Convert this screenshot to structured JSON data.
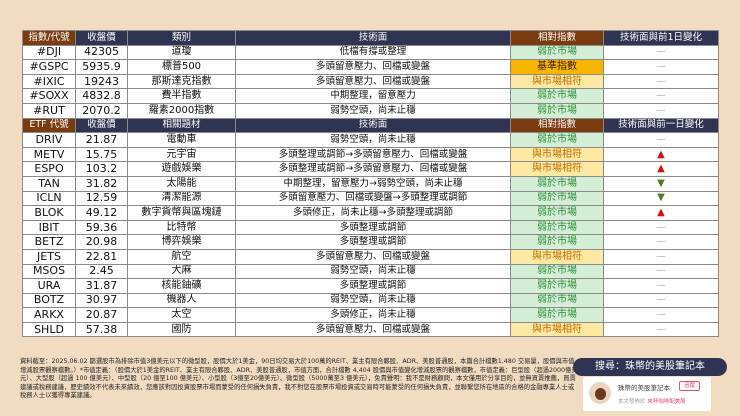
{
  "index_header": [
    "指數/代號",
    "收盤價",
    "類別",
    "技術面",
    "相對指數",
    "技術面與前1日變化"
  ],
  "indices": [
    {
      "code": "#DJI",
      "price": "42305",
      "category": "道瓊",
      "tech": "低檔有撐或整理",
      "rel": "弱於市場",
      "rel_type": "weak",
      "change": "—",
      "change_type": "flat"
    },
    {
      "code": "#GSPC",
      "price": "5935.9",
      "category": "標普500",
      "tech": "多頭留意壓力、回檔或變盤",
      "rel": "基準指數",
      "rel_type": "bench",
      "change": "—",
      "change_type": "flat"
    },
    {
      "code": "#IXIC",
      "price": "19243",
      "category": "那斯達克指數",
      "tech": "多頭留意壓力、回檔或變盤",
      "rel": "與市場相符",
      "rel_type": "match",
      "change": "—",
      "change_type": "flat"
    },
    {
      "code": "#SOXX",
      "price": "4832.8",
      "category": "費半指數",
      "tech": "中期整理，留意壓力",
      "rel": "弱於市場",
      "rel_type": "weak",
      "change": "—",
      "change_type": "flat"
    },
    {
      "code": "#RUT",
      "price": "2070.2",
      "category": "羅素2000指數",
      "tech": "弱勢空頭，尚未止穩",
      "rel": "弱於市場",
      "rel_type": "weak",
      "change": "—",
      "change_type": "flat"
    }
  ],
  "etf_header": [
    "ETF 代號",
    "收盤價",
    "相關題材",
    "技術面",
    "相對指數",
    "技術面與前一日變化"
  ],
  "etfs": [
    {
      "code": "DRIV",
      "price": "21.87",
      "category": "電動車",
      "tech": "弱勢空頭，尚未止穩",
      "rel": "弱於市場",
      "rel_type": "weak",
      "change": "—",
      "change_type": "flat"
    },
    {
      "code": "METV",
      "price": "15.75",
      "category": "元宇宙",
      "tech": "多頭整理或調節→多頭留意壓力、回檔或變盤",
      "rel": "與市場相符",
      "rel_type": "match",
      "change": "▲",
      "change_type": "up"
    },
    {
      "code": "ESPO",
      "price": "103.2",
      "category": "遊戲娛樂",
      "tech": "多頭整理或調節→多頭留意壓力、回檔或變盤",
      "rel": "與市場相符",
      "rel_type": "match",
      "change": "▲",
      "change_type": "up"
    },
    {
      "code": "TAN",
      "price": "31.82",
      "category": "太陽能",
      "tech": "中期整理，留意壓力→弱勢空頭，尚未止穩",
      "rel": "弱於市場",
      "rel_type": "weak",
      "change": "▼",
      "change_type": "down"
    },
    {
      "code": "ICLN",
      "price": "12.59",
      "category": "清潔能源",
      "tech": "多頭留意壓力、回檔或變盤→多頭整理或調節",
      "rel": "弱於市場",
      "rel_type": "weak",
      "change": "▼",
      "change_type": "down"
    },
    {
      "code": "BLOK",
      "price": "49.12",
      "category": "數字貨幣與區塊鏈",
      "tech": "多頭修正，尚未止穩→多頭整理或調節",
      "rel": "弱於市場",
      "rel_type": "weak",
      "change": "▲",
      "change_type": "up"
    },
    {
      "code": "IBIT",
      "price": "59.36",
      "category": "比特幣",
      "tech": "多頭整理或調節",
      "rel": "弱於市場",
      "rel_type": "weak",
      "change": "—",
      "change_type": "flat"
    },
    {
      "code": "BETZ",
      "price": "20.98",
      "category": "博弈娛樂",
      "tech": "多頭整理或調節",
      "rel": "弱於市場",
      "rel_type": "weak",
      "change": "—",
      "change_type": "flat"
    },
    {
      "code": "JETS",
      "price": "22.81",
      "category": "航空",
      "tech": "多頭留意壓力、回檔或變盤",
      "rel": "與市場相符",
      "rel_type": "match",
      "change": "—",
      "change_type": "flat"
    },
    {
      "code": "MSOS",
      "price": "2.45",
      "category": "大麻",
      "tech": "弱勢空頭，尚未止穩",
      "rel": "弱於市場",
      "rel_type": "weak",
      "change": "—",
      "change_type": "flat"
    },
    {
      "code": "URA",
      "price": "31.87",
      "category": "核能鈾礦",
      "tech": "多頭整理或調節",
      "rel": "弱於市場",
      "rel_type": "weak",
      "change": "—",
      "change_type": "flat"
    },
    {
      "code": "BOTZ",
      "price": "30.97",
      "category": "機器人",
      "tech": "弱勢空頭，尚未止穩",
      "rel": "弱於市場",
      "rel_type": "weak",
      "change": "—",
      "change_type": "flat"
    },
    {
      "code": "ARKX",
      "price": "20.87",
      "category": "太空",
      "tech": "多頭修正，尚未止穩",
      "rel": "弱於市場",
      "rel_type": "weak",
      "change": "—",
      "change_type": "flat"
    },
    {
      "code": "SHLD",
      "price": "57.38",
      "category": "國防",
      "tech": "多頭留意壓力、回檔或變盤",
      "rel": "與市場相符",
      "rel_type": "match",
      "change": "—",
      "change_type": "flat"
    }
  ],
  "footnote": "資料截至：2025.06.02 篩選股市為排除市值3億美元以下的微型股，股價大於1美金，90日均交易大於100萬的REIT、業主有限合夥股、ADR、美股普通股，本篇合計檔數1,480 交易量，股價與市值增減股票觀察檔數。）*市值定義：（股價大於1美金的REIT、業主有限合夥股、ADR、美股普通股，市值方面，合計檔數 4,404 股價與市值變化增減股票的觀察檔數，市值定義：巨型股（超過2000億美元）、大型股（超過 100 億美元）、中型股（20 億至100 億美元）、小型股（3億至20億美元）、微型股（5000萬至3 億美元），免責聲明：我不是財務顧問，本文僅用於分享目的，並無買賣推薦，買賣建議或稅務建議，歷史績效不代表未來績效，您應該對因投資股票市場而蒙受的任何損失負責，我不對您在股票市場投資或交易時可能蒙受的任何損失負責，並聯繫您所在地區的合格的金融專業人士或稅務人士以獲得專業建議。",
  "search_label": "搜尋：珠幣的美股筆記本",
  "card": {
    "name": "珠幣的美股筆記本",
    "follow": "追蹤",
    "sub_prefix": "本文發佈於",
    "sub_link": "來杯咖啡配美股"
  },
  "colors": {
    "background": "#f2dcc1",
    "header": "#2f3452",
    "header_brown": "#7a3b10",
    "weak_bg": "#d5efd7",
    "match_bg": "#fde9a3",
    "bench_bg": "#f7b500",
    "up": "#d01010",
    "down": "#4f7a2a"
  }
}
